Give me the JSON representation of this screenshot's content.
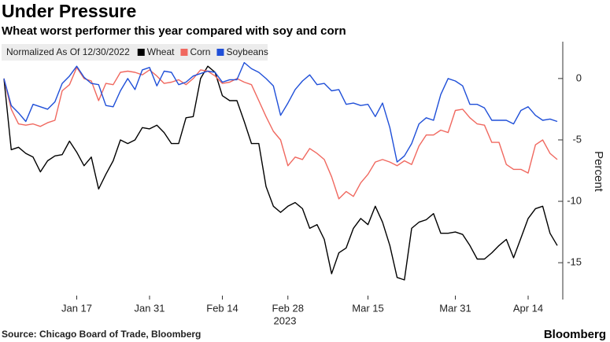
{
  "chart_data": {
    "type": "line",
    "title": "Under Pressure",
    "subtitle": "Wheat worst performer this year compared with soy and corn",
    "legend_title": "Normalized As Of 12/30/2022",
    "y_label": "Percent",
    "year_label": "2023",
    "source": "Source: Chicago Board of Trade, Bloomberg",
    "brand": "Bloomberg",
    "categories": [
      null,
      null,
      null,
      null,
      null,
      null,
      null,
      null,
      null,
      null,
      "Jan 17",
      null,
      null,
      null,
      null,
      null,
      null,
      null,
      null,
      null,
      "Jan 31",
      null,
      null,
      null,
      null,
      null,
      null,
      null,
      null,
      null,
      "Feb 14",
      null,
      null,
      null,
      null,
      null,
      null,
      null,
      null,
      "Feb 28",
      null,
      null,
      null,
      null,
      null,
      null,
      null,
      null,
      null,
      null,
      "Mar 15",
      null,
      null,
      null,
      null,
      null,
      null,
      null,
      null,
      null,
      null,
      null,
      "Mar 31",
      null,
      null,
      null,
      null,
      null,
      null,
      null,
      null,
      null,
      "Apr 14",
      null,
      null,
      null,
      null
    ],
    "series": [
      {
        "name": "Wheat",
        "color": "#000000",
        "values": [
          0,
          -5.8,
          -5.6,
          -6.1,
          -6.4,
          -7.6,
          -6.7,
          -6.3,
          -6.2,
          -5.1,
          -6.0,
          -7.1,
          -6.4,
          -9.0,
          -7.8,
          -6.7,
          -5.0,
          -5.3,
          -5.0,
          -4.0,
          -4.1,
          -3.8,
          -4.4,
          -5.3,
          -5.3,
          -3.2,
          -3.1,
          0,
          1.0,
          0.5,
          -1.4,
          -1.8,
          -1.8,
          -3.5,
          -5.3,
          -5.3,
          -8.8,
          -10.4,
          -10.9,
          -10.4,
          -10.1,
          -10.6,
          -12.2,
          -11.9,
          -13.1,
          -15.9,
          -14.2,
          -13.8,
          -12.2,
          -11.4,
          -11.9,
          -10.4,
          -11.7,
          -13.6,
          -16.2,
          -16.4,
          -12.2,
          -11.7,
          -11.5,
          -11.0,
          -12.6,
          -12.6,
          -12.5,
          -12.7,
          -13.6,
          -14.7,
          -14.7,
          -14.2,
          -13.6,
          -13.1,
          -14.6,
          -13.0,
          -11.4,
          -10.6,
          -10.4,
          -12.6,
          -13.6
        ]
      },
      {
        "name": "Corn",
        "color": "#f0685f",
        "values": [
          0,
          -2.5,
          -3.7,
          -3.8,
          -3.7,
          -3.9,
          -3.6,
          -3.4,
          -1.0,
          -0.5,
          0.9,
          0.0,
          -0.2,
          -1.8,
          -0.4,
          -0.5,
          0.5,
          0.6,
          0.5,
          0.3,
          0.7,
          0.2,
          -0.4,
          -0.3,
          -0.1,
          -0.5,
          0.0,
          0.7,
          0.6,
          0.2,
          -0.4,
          -0.3,
          0.0,
          -0.3,
          -0.5,
          -1.8,
          -3.1,
          -4.3,
          -5.0,
          -7.1,
          -6.4,
          -6.6,
          -5.7,
          -6.1,
          -6.6,
          -8.0,
          -9.8,
          -9.2,
          -9.6,
          -8.5,
          -7.8,
          -6.8,
          -6.6,
          -6.8,
          -7.1,
          -6.7,
          -7.0,
          -5.5,
          -4.6,
          -4.6,
          -4.2,
          -4.4,
          -2.6,
          -2.5,
          -3.2,
          -3.7,
          -3.8,
          -5.2,
          -5.2,
          -7.0,
          -7.4,
          -7.4,
          -7.7,
          -5.4,
          -5.0,
          -6.1,
          -6.6
        ]
      },
      {
        "name": "Soybeans",
        "color": "#1f4fd8",
        "values": [
          0,
          -2.2,
          -2.8,
          -3.5,
          -2.1,
          -2.3,
          -2.5,
          -1.9,
          -0.4,
          0.2,
          1.0,
          0.1,
          -0.4,
          -0.5,
          -2.2,
          -2.3,
          -1.0,
          0.0,
          -0.9,
          0.7,
          0.9,
          -0.6,
          0.6,
          0.5,
          -0.5,
          -0.3,
          0.2,
          0.4,
          0.6,
          0.5,
          -0.3,
          -0.1,
          -0.1,
          1.3,
          0.8,
          0.5,
          0.0,
          -0.6,
          -3.0,
          -2.0,
          -0.9,
          -0.2,
          0.3,
          -0.5,
          -0.4,
          -1.0,
          -0.9,
          -2.1,
          -2.0,
          -2.2,
          -2.1,
          -3.1,
          -2.0,
          -4.0,
          -6.8,
          -6.3,
          -5.3,
          -3.7,
          -3.2,
          -3.4,
          -1.3,
          0.0,
          -0.2,
          -0.6,
          -2.1,
          -2.1,
          -2.4,
          -3.4,
          -3.4,
          -3.4,
          -3.7,
          -2.6,
          -2.3,
          -3.0,
          -3.4,
          -3.3,
          -3.5
        ]
      }
    ],
    "ylim": [
      -18,
      3
    ],
    "yticks": [
      0,
      -5,
      -10,
      -15
    ],
    "y_axis_side": "right"
  }
}
